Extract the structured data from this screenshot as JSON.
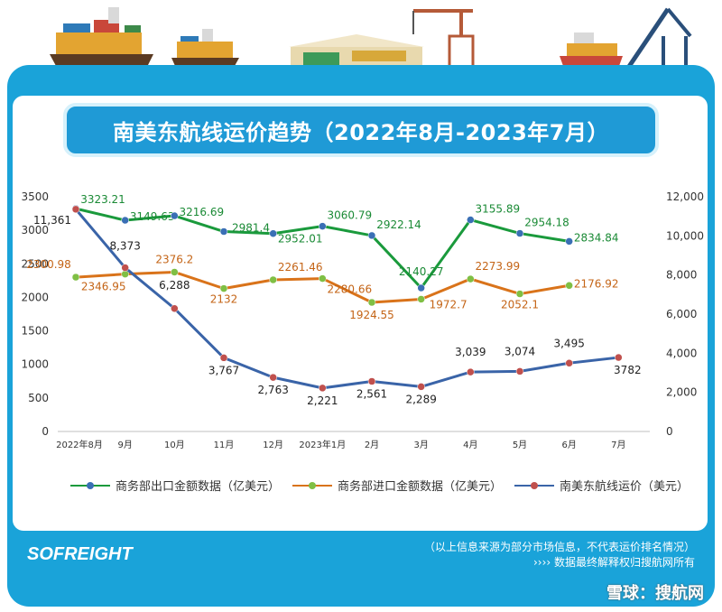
{
  "header": {
    "title": "南美东航线运价趋势（2022年8月-2023年7月）"
  },
  "colors": {
    "frame": "#1aa3d9",
    "export_series": "#1a9a3c",
    "export_marker": "#3a6fb5",
    "import_series": "#d9731a",
    "import_marker": "#7fbf44",
    "freight_series": "#3a64a8",
    "freight_marker": "#c0504d"
  },
  "chart_data": {
    "type": "line",
    "categories": [
      "2022年8月",
      "9月",
      "10月",
      "11月",
      "12月",
      "2023年1月",
      "2月",
      "3月",
      "4月",
      "5月",
      "6月",
      "7月"
    ],
    "y_left": {
      "ticks": [
        "0",
        "500",
        "1000",
        "1500",
        "2000",
        "2500",
        "3000",
        "3500"
      ],
      "range": [
        0,
        3500
      ]
    },
    "y_right": {
      "ticks": [
        "0",
        "2,000",
        "4,000",
        "6,000",
        "8,000",
        "10,000",
        "12,000"
      ],
      "range": [
        0,
        12000
      ]
    },
    "grid": false,
    "legend_position": "bottom",
    "series": [
      {
        "name": "商务部出口金额数据（亿美元）",
        "axis": "left",
        "values": [
          3323.21,
          3149.63,
          3216.69,
          2981.4,
          2952.01,
          3060.79,
          2922.14,
          2140.27,
          3155.89,
          2954.18,
          2834.84,
          null
        ],
        "labels": [
          "3323.21",
          "3149.63",
          "3216.69",
          "2981.4",
          "2952.01",
          "3060.79",
          "2922.14",
          "2140.27",
          "3155.89",
          "2954.18",
          "2834.84",
          ""
        ]
      },
      {
        "name": "商务部进口金额数据（亿美元）",
        "axis": "left",
        "values": [
          2300.98,
          2346.95,
          2376.2,
          2132,
          2261.46,
          2280.66,
          1924.55,
          1972.7,
          2273.99,
          2052.1,
          2176.92,
          null
        ],
        "labels": [
          "2300.98",
          "2346.95",
          "2376.2",
          "2132",
          "2261.46",
          "2280.66",
          "1924.55",
          "1972.7",
          "2273.99",
          "2052.1",
          "2176.92",
          ""
        ]
      },
      {
        "name": "南美东航线运价（美元）",
        "axis": "right",
        "values": [
          11361,
          8373,
          6288,
          3767,
          2763,
          2221,
          2561,
          2289,
          3039,
          3074,
          3495,
          3782
        ],
        "labels": [
          "11,361",
          "8,373",
          "6,288",
          "3,767",
          "2,763",
          "2,221",
          "2,561",
          "2,289",
          "3,039",
          "3,074",
          "3,495",
          "3782"
        ]
      }
    ]
  },
  "footer": {
    "logo": "SOFREIGHT",
    "note1": "（以上信息来源为部分市场信息，不代表运价排名情况）",
    "note2": "›››› 数据最终解释权归搜航网所有",
    "watermark": "雪球：搜航网"
  }
}
